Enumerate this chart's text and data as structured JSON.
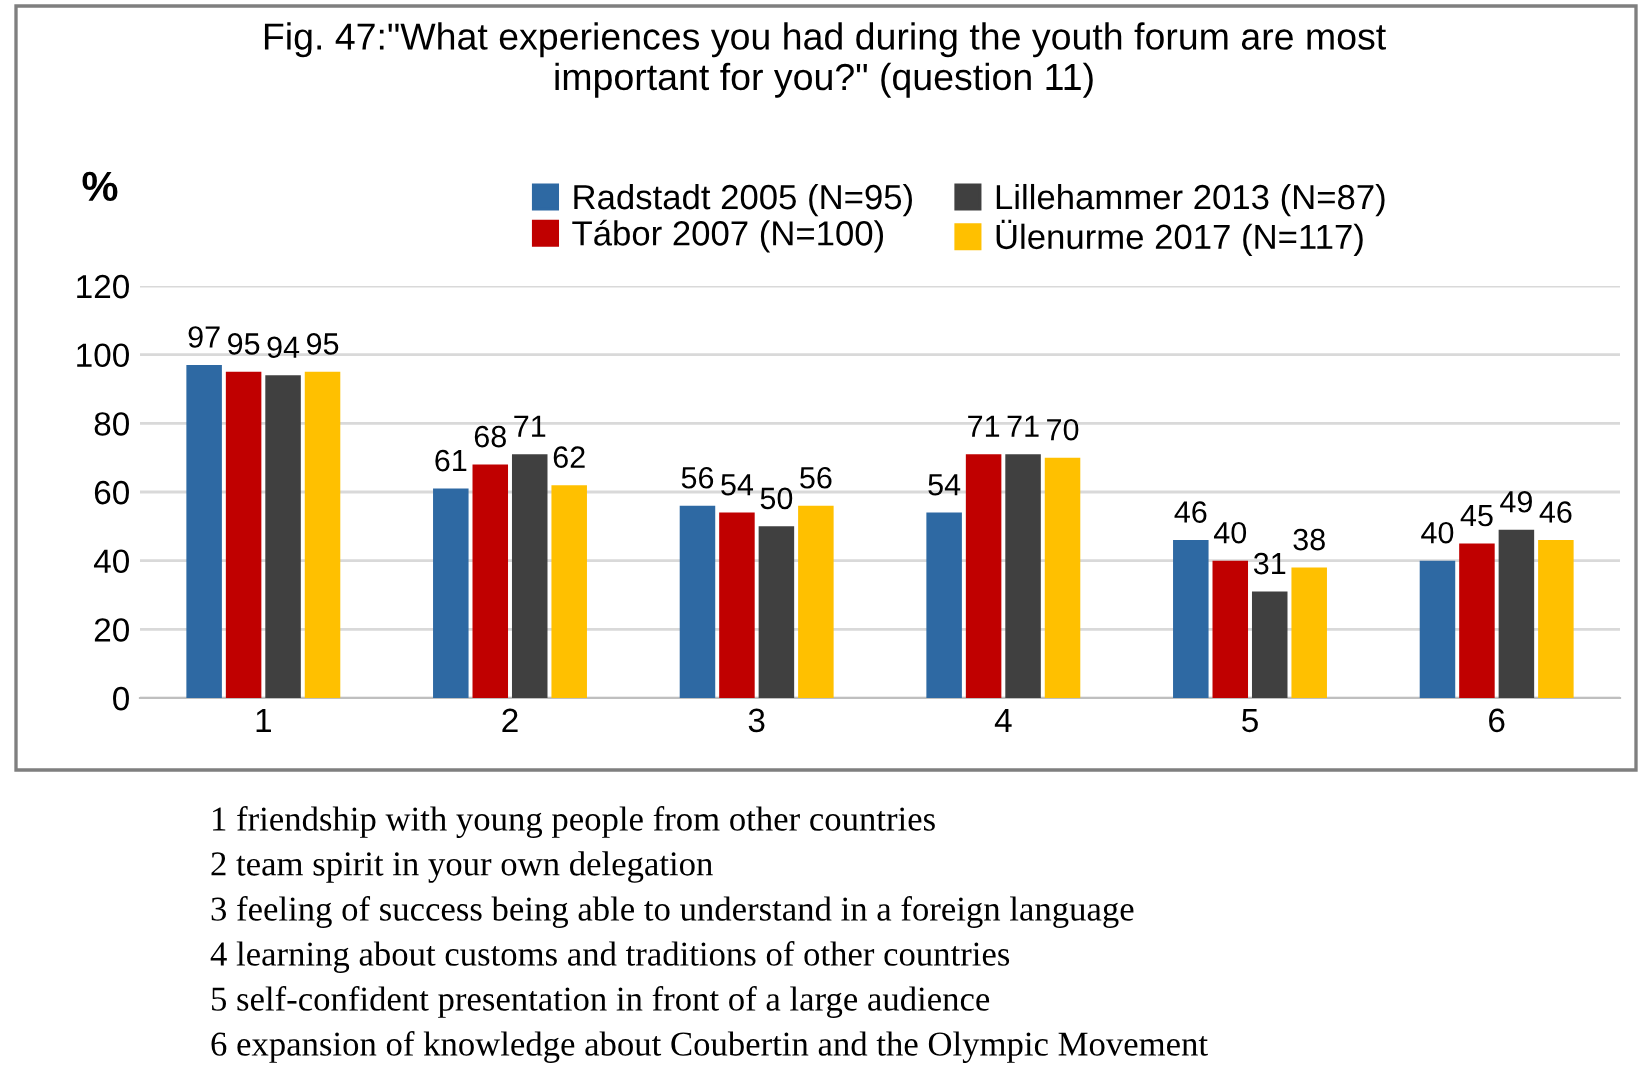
{
  "chart_data": {
    "type": "bar",
    "title": "Fig. 47:\"What experiences you had during the youth forum are most\nimportant for you?\" (question 11)",
    "ylabel": "%",
    "categories": [
      "1",
      "2",
      "3",
      "4",
      "5",
      "6"
    ],
    "series": [
      {
        "name": "Radstadt 2005 (N=95)",
        "color": "#2e69a3",
        "values": [
          97,
          61,
          56,
          54,
          46,
          40
        ]
      },
      {
        "name": "Tábor 2007 (N=100)",
        "color": "#c00000",
        "values": [
          95,
          68,
          54,
          71,
          40,
          45
        ]
      },
      {
        "name": "Lillehammer 2013 (N=87)",
        "color": "#404040",
        "values": [
          94,
          71,
          50,
          71,
          31,
          49
        ]
      },
      {
        "name": "Ülenurme 2017 (N=117)",
        "color": "#ffc000",
        "values": [
          95,
          62,
          56,
          70,
          38,
          46
        ]
      }
    ],
    "ylim": [
      0,
      120
    ],
    "yticks": [
      0,
      20,
      40,
      60,
      80,
      100,
      120
    ],
    "grid": "y",
    "legend": "top",
    "data_labels": true,
    "annotations": [
      "1 friendship with young people from other countries",
      "2 team spirit in your own delegation",
      "3 feeling of success being able to understand in a foreign language",
      "4 learning about customs and traditions of other countries",
      "5 self-confident presentation in front of a large audience",
      "6 expansion of knowledge about Coubertin and the Olympic Movement"
    ]
  }
}
